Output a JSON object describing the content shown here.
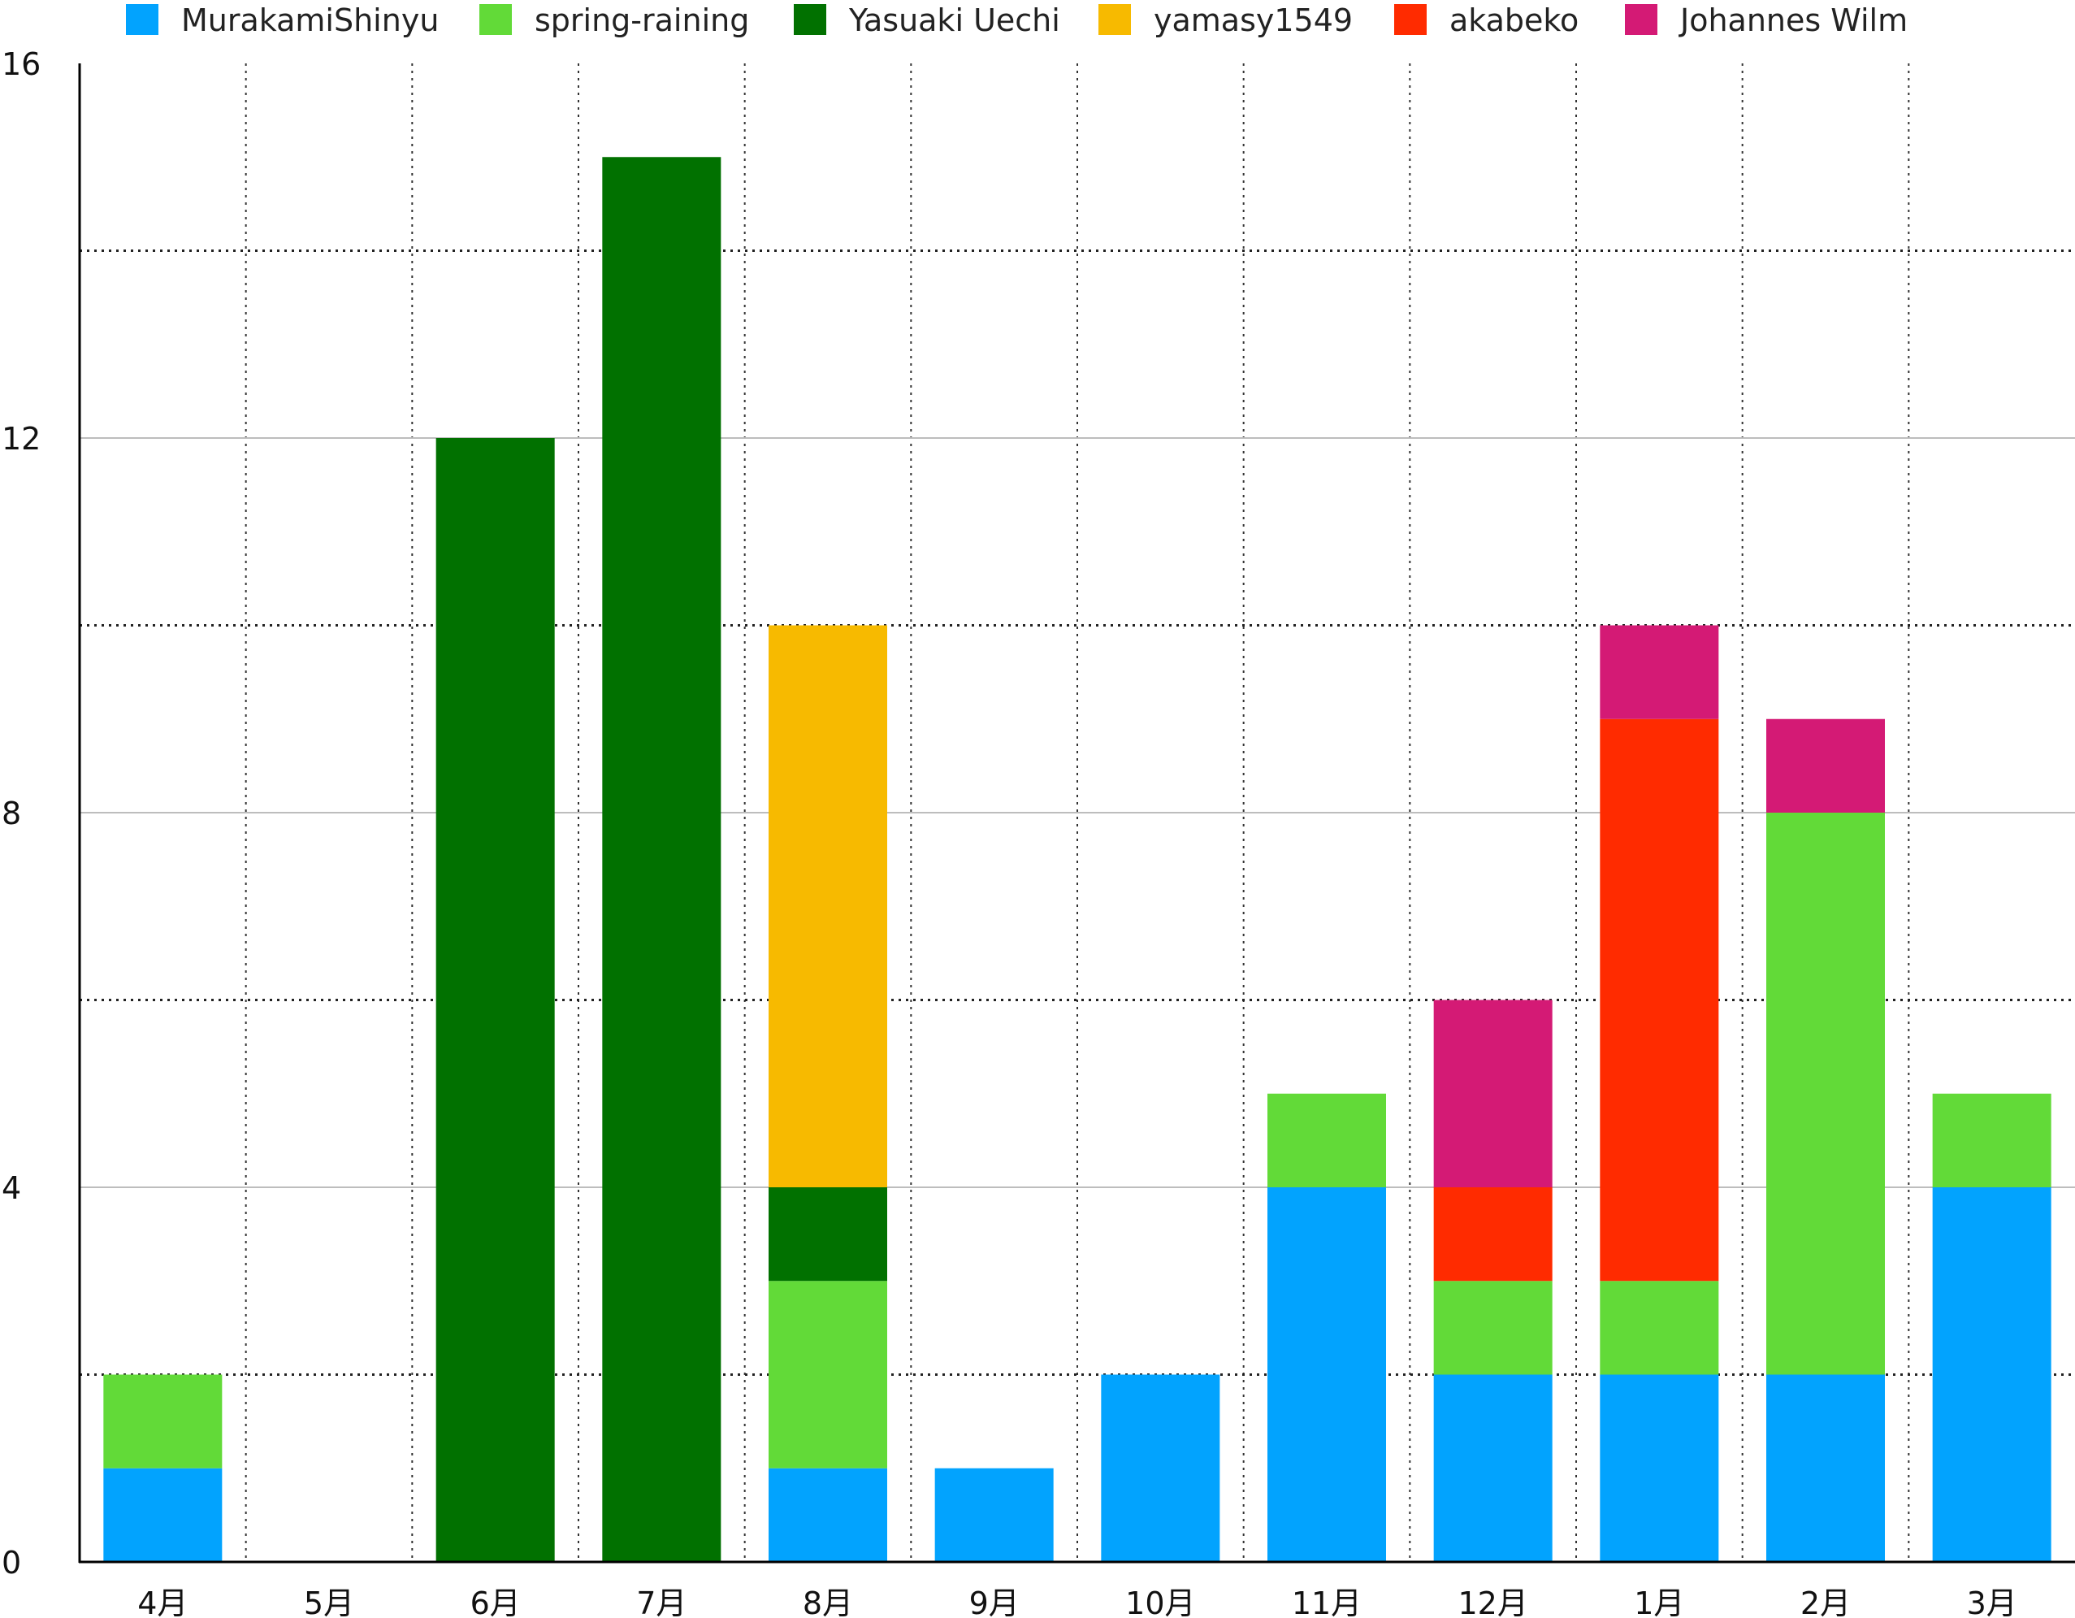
{
  "chart_data": {
    "type": "bar",
    "stacked": true,
    "title": "",
    "xlabel": "",
    "ylabel": "",
    "ylim": [
      0,
      16
    ],
    "yticks": [
      0,
      4,
      8,
      12,
      16
    ],
    "grid": true,
    "legend_position": "top",
    "categories": [
      "4月",
      "5月",
      "6月",
      "7月",
      "8月",
      "9月",
      "10月",
      "11月",
      "12月",
      "1月",
      "2月",
      "3月"
    ],
    "series": [
      {
        "name": "MurakamiShinyu",
        "color": "#02a3fe",
        "values": [
          1,
          0,
          0,
          0,
          1,
          1,
          2,
          4,
          2,
          2,
          2,
          4
        ]
      },
      {
        "name": "spring-raining",
        "color": "#62da38",
        "values": [
          1,
          0,
          0,
          0,
          2,
          0,
          0,
          1,
          1,
          1,
          6,
          1
        ]
      },
      {
        "name": "Yasuaki Uechi",
        "color": "#017100",
        "values": [
          0,
          0,
          12,
          15,
          1,
          0,
          0,
          0,
          0,
          0,
          0,
          0
        ]
      },
      {
        "name": "yamasy1549",
        "color": "#f7ba00",
        "values": [
          0,
          0,
          0,
          0,
          6,
          0,
          0,
          0,
          0,
          0,
          0,
          0
        ]
      },
      {
        "name": "akabeko",
        "color": "#ff2b00",
        "values": [
          0,
          0,
          0,
          0,
          0,
          0,
          0,
          0,
          1,
          6,
          0,
          0
        ]
      },
      {
        "name": "Johannes Wilm",
        "color": "#d41a75",
        "values": [
          0,
          0,
          0,
          0,
          0,
          0,
          0,
          0,
          2,
          1,
          1,
          0
        ]
      }
    ]
  }
}
